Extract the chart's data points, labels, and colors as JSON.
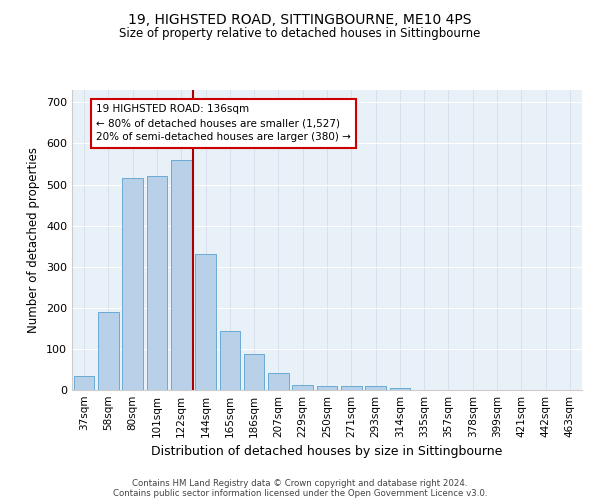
{
  "title1": "19, HIGHSTED ROAD, SITTINGBOURNE, ME10 4PS",
  "title2": "Size of property relative to detached houses in Sittingbourne",
  "xlabel": "Distribution of detached houses by size in Sittingbourne",
  "ylabel": "Number of detached properties",
  "categories": [
    "37sqm",
    "58sqm",
    "80sqm",
    "101sqm",
    "122sqm",
    "144sqm",
    "165sqm",
    "186sqm",
    "207sqm",
    "229sqm",
    "250sqm",
    "271sqm",
    "293sqm",
    "314sqm",
    "335sqm",
    "357sqm",
    "378sqm",
    "399sqm",
    "421sqm",
    "442sqm",
    "463sqm"
  ],
  "values": [
    33,
    190,
    515,
    520,
    560,
    330,
    143,
    87,
    42,
    13,
    10,
    10,
    10,
    5,
    0,
    0,
    0,
    0,
    0,
    0,
    0
  ],
  "bar_color": "#b8d0e8",
  "bar_edge_color": "#6aaad4",
  "background_color": "#e8f0f8",
  "vline_x": 4.5,
  "annotation_text": "19 HIGHSTED ROAD: 136sqm\n← 80% of detached houses are smaller (1,527)\n20% of semi-detached houses are larger (380) →",
  "annotation_box_color": "#ffffff",
  "annotation_box_edge": "#cc0000",
  "vline_color": "#aa0000",
  "footer1": "Contains HM Land Registry data © Crown copyright and database right 2024.",
  "footer2": "Contains public sector information licensed under the Open Government Licence v3.0.",
  "yticks": [
    0,
    100,
    200,
    300,
    400,
    500,
    600,
    700
  ],
  "ylim": [
    0,
    730
  ]
}
